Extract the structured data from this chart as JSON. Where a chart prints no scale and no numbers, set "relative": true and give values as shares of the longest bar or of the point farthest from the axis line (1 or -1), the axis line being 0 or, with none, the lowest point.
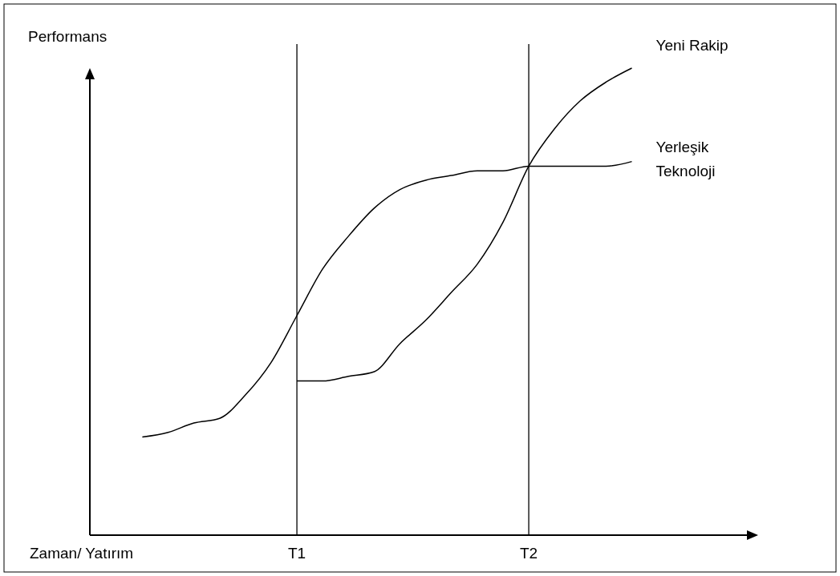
{
  "chart_data": {
    "type": "line",
    "relative": true,
    "xlabel": "Zaman/ Yatırım",
    "ylabel": "Performans",
    "categories": [
      null,
      null,
      null,
      null,
      null,
      null,
      "T1",
      null,
      null,
      null,
      null,
      null,
      null,
      null,
      null,
      "T2",
      null,
      null,
      null,
      null
    ],
    "grid": false,
    "legend": false,
    "marker": "none",
    "line_style": "solid",
    "series": [
      {
        "name": "Yerleşik Teknoloji",
        "color": "#000000",
        "values": [
          0.21,
          0.22,
          0.24,
          0.25,
          0.3,
          0.37,
          0.47,
          0.57,
          0.64,
          0.7,
          0.74,
          0.76,
          0.77,
          0.78,
          0.78,
          0.79,
          0.79,
          0.79,
          0.79,
          0.8
        ]
      },
      {
        "name": "Yeni Rakip",
        "color": "#000000",
        "values": [
          null,
          null,
          null,
          null,
          null,
          null,
          0.33,
          0.33,
          0.34,
          0.35,
          0.41,
          0.46,
          0.52,
          0.58,
          0.67,
          0.79,
          0.87,
          0.93,
          0.97,
          1.0
        ]
      }
    ],
    "ref_lines": [
      {
        "axis": "x",
        "value": "T1",
        "color": "#000000",
        "line_style": "solid"
      },
      {
        "axis": "x",
        "value": "T2",
        "color": "#000000",
        "line_style": "solid"
      }
    ]
  }
}
